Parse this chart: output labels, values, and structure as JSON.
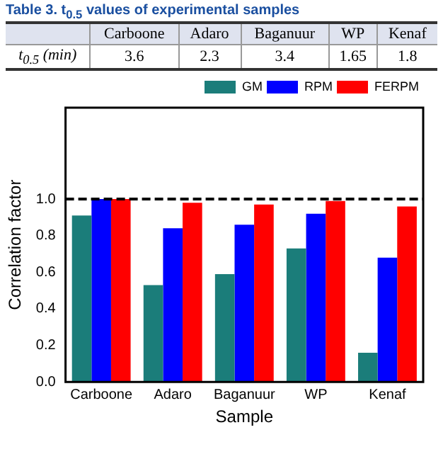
{
  "chart_data": [
    {
      "type": "other",
      "title": "Table 3. t$_{0.5}$ values of experimental samples",
      "ylabel": "t$_{0.5}$ (min)",
      "categories": [
        "Carboone",
        "Adaro",
        "Baganuur",
        "WP",
        "Kenaf"
      ],
      "values": [
        3.6,
        2.3,
        3.4,
        1.65,
        1.8
      ],
      "data_labels": true
    },
    {
      "type": "bar",
      "xlabel": "Sample",
      "ylabel": "Correlation factor",
      "categories": [
        "Carboone",
        "Adaro",
        "Baganuur",
        "WP",
        "Kenaf"
      ],
      "series": [
        {
          "name": "GM",
          "color": "#1b7d7a",
          "values": [
            0.91,
            0.53,
            0.59,
            0.73,
            0.16
          ]
        },
        {
          "name": "RPM",
          "color": "#0000ff",
          "values": [
            1.0,
            0.84,
            0.86,
            0.92,
            0.68
          ]
        },
        {
          "name": "FERPM",
          "color": "#ff0000",
          "values": [
            1.0,
            0.98,
            0.97,
            0.99,
            0.96
          ]
        }
      ],
      "ylim": [
        0,
        1.5
      ],
      "yticks": [
        {
          "value": 0,
          "label": "0.0"
        },
        0.2,
        0.4,
        0.6,
        0.8,
        {
          "value": 1,
          "label": "1.0"
        }
      ],
      "ref_lines": [
        {
          "axis": "y",
          "value": 1,
          "color": "#000000",
          "line_style": "dashed"
        }
      ],
      "legend": "top right",
      "grid": false
    }
  ]
}
